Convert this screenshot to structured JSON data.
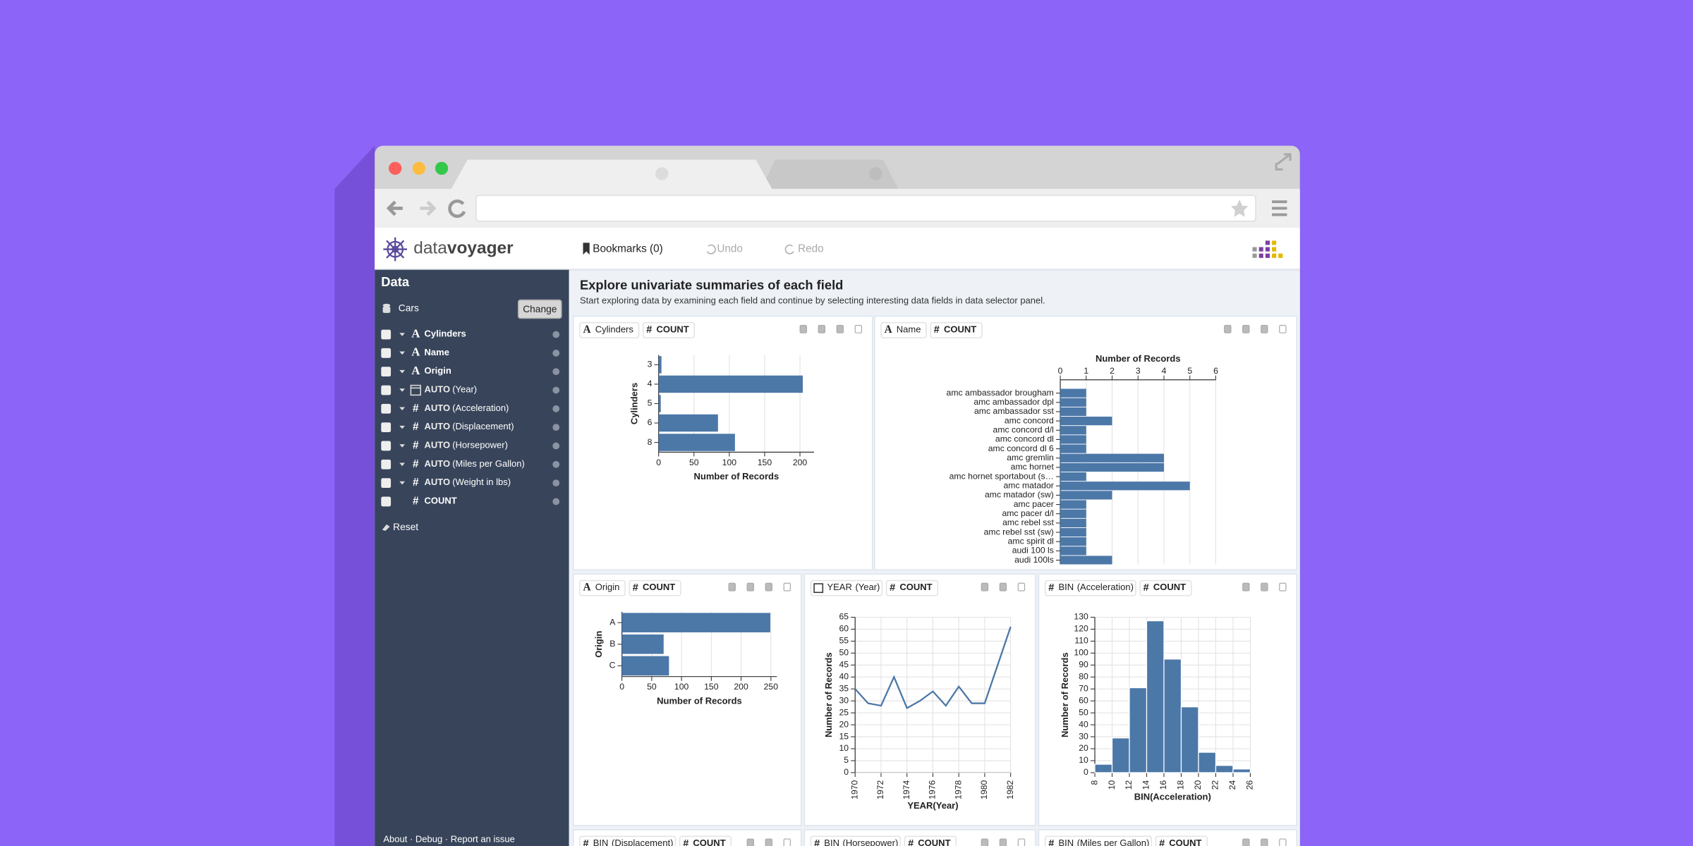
{
  "app": {
    "logo": {
      "light": "data",
      "bold": "voyager"
    },
    "nav": {
      "bookmarks": "Bookmarks (0)",
      "undo": "Undo",
      "redo": "Redo"
    }
  },
  "sidebar": {
    "title": "Data",
    "dataset": "Cars",
    "button": "Change",
    "fields": [
      {
        "type": "A",
        "label": "Cylinders"
      },
      {
        "type": "A",
        "label": "Name"
      },
      {
        "type": "A",
        "label": "Origin"
      },
      {
        "fn": "AUTO",
        "label": "(Year)"
      },
      {
        "type": "#",
        "fn": "AUTO",
        "label": "(Acceleration)"
      },
      {
        "type": "#",
        "fn": "AUTO",
        "label": "(Displacement)"
      },
      {
        "type": "#",
        "fn": "AUTO",
        "label": "(Horsepower)"
      },
      {
        "type": "#",
        "fn": "AUTO",
        "label": "(Miles per Gallon)"
      },
      {
        "type": "#",
        "fn": "AUTO",
        "label": "(Weight in lbs)"
      },
      {
        "type": "#",
        "label": "COUNT"
      }
    ],
    "reset": "Reset",
    "footer": "About · Debug · Report an issue"
  },
  "main": {
    "title": "Explore univariate summaries of each field",
    "subtitle": "Start exploring data by examining each field and continue by selecting interesting data fields in data selector panel.",
    "panels": [
      {
        "encodings": [
          {
            "type": "A",
            "field": "Cylinders"
          },
          {
            "type": "#",
            "field": "COUNT"
          }
        ]
      },
      {
        "encodings": [
          {
            "type": "A",
            "field": "Name"
          },
          {
            "type": "#",
            "field": "COUNT"
          }
        ]
      },
      {
        "encodings": [
          {
            "type": "A",
            "field": "Origin"
          },
          {
            "type": "#",
            "field": "COUNT"
          }
        ]
      },
      {
        "encodings": [
          {
            "fn": "YEAR",
            "field": "(Year)"
          },
          {
            "type": "#",
            "field": "COUNT"
          }
        ]
      },
      {
        "encodings": [
          {
            "type": "#",
            "fn": "BIN",
            "field": "(Acceleration)"
          },
          {
            "type": "#",
            "field": "COUNT"
          }
        ]
      },
      {
        "encodings": [
          {
            "type": "#",
            "fn": "BIN",
            "field": "(Displacement)"
          },
          {
            "type": "#",
            "field": "COUNT"
          }
        ]
      },
      {
        "encodings": [
          {
            "type": "#",
            "fn": "BIN",
            "field": "(Horsepower)"
          },
          {
            "type": "#",
            "field": "COUNT"
          }
        ]
      },
      {
        "encodings": [
          {
            "type": "#",
            "fn": "BIN",
            "field": "(Miles per Gallon)"
          },
          {
            "type": "#",
            "field": "COUNT"
          }
        ]
      }
    ]
  },
  "chart_data": [
    {
      "type": "bar",
      "orientation": "horizontal",
      "categories": [
        "3",
        "4",
        "5",
        "6",
        "8"
      ],
      "values": [
        4,
        204,
        3,
        84,
        108
      ],
      "xlim": [
        0,
        220
      ],
      "xticks": [
        0,
        50,
        100,
        150,
        200
      ],
      "xlabel": "Number of Records",
      "ylabel": "Cylinders",
      "color": "#4c78a8",
      "grid": true
    },
    {
      "type": "bar",
      "orientation": "horizontal",
      "x_axis_position": "top",
      "categories": [
        "amc ambassador brougham",
        "amc ambassador dpl",
        "amc ambassador sst",
        "amc concord",
        "amc concord d/l",
        "amc concord dl",
        "amc concord dl 6",
        "amc gremlin",
        "amc hornet",
        "amc hornet sportabout (s…",
        "amc matador",
        "amc matador (sw)",
        "amc pacer",
        "amc pacer d/l",
        "amc rebel sst",
        "amc rebel sst (sw)",
        "amc spirit dl",
        "audi 100 ls",
        "audi 100ls"
      ],
      "values": [
        1,
        1,
        1,
        2,
        1,
        1,
        1,
        4,
        4,
        1,
        5,
        2,
        1,
        1,
        1,
        1,
        1,
        1,
        2
      ],
      "xlim": [
        0,
        6
      ],
      "xticks": [
        0,
        1,
        2,
        3,
        4,
        5,
        6
      ],
      "xlabel": "Number of Records",
      "color": "#4c78a8",
      "grid": true
    },
    {
      "type": "bar",
      "orientation": "horizontal",
      "categories": [
        "A",
        "B",
        "C"
      ],
      "values": [
        249,
        70,
        79
      ],
      "xlim": [
        0,
        260
      ],
      "xticks": [
        0,
        50,
        100,
        150,
        200,
        250
      ],
      "xlabel": "Number of Records",
      "ylabel": "Origin",
      "color": "#4c78a8",
      "grid": true
    },
    {
      "type": "line",
      "x": [
        1970,
        1971,
        1972,
        1973,
        1974,
        1975,
        1976,
        1977,
        1978,
        1979,
        1980,
        1982
      ],
      "values": [
        35,
        29,
        28,
        40,
        27,
        30,
        34,
        28,
        36,
        29,
        29,
        61
      ],
      "xlim": [
        1970,
        1982
      ],
      "xticks": [
        1970,
        1972,
        1974,
        1976,
        1978,
        1980,
        1982
      ],
      "ylim": [
        0,
        65
      ],
      "yticks": [
        0,
        5,
        10,
        15,
        20,
        25,
        30,
        35,
        40,
        45,
        50,
        55,
        60,
        65
      ],
      "xlabel": "YEAR(Year)",
      "ylabel": "Number of Records",
      "color": "#4c78a8",
      "grid": true
    },
    {
      "type": "histogram",
      "bins": [
        8,
        10,
        12,
        14,
        16,
        18,
        20,
        22,
        24,
        26
      ],
      "values": [
        7,
        29,
        71,
        127,
        95,
        55,
        17,
        6,
        3
      ],
      "xlim": [
        8,
        26
      ],
      "xticks": [
        8,
        10,
        12,
        14,
        16,
        18,
        20,
        22,
        24,
        26
      ],
      "ylim": [
        0,
        130
      ],
      "yticks": [
        0,
        10,
        20,
        30,
        40,
        50,
        60,
        70,
        80,
        90,
        100,
        110,
        120,
        130
      ],
      "xlabel": "BIN(Acceleration)",
      "ylabel": "Number of Records",
      "color": "#4c78a8",
      "grid": true
    }
  ]
}
